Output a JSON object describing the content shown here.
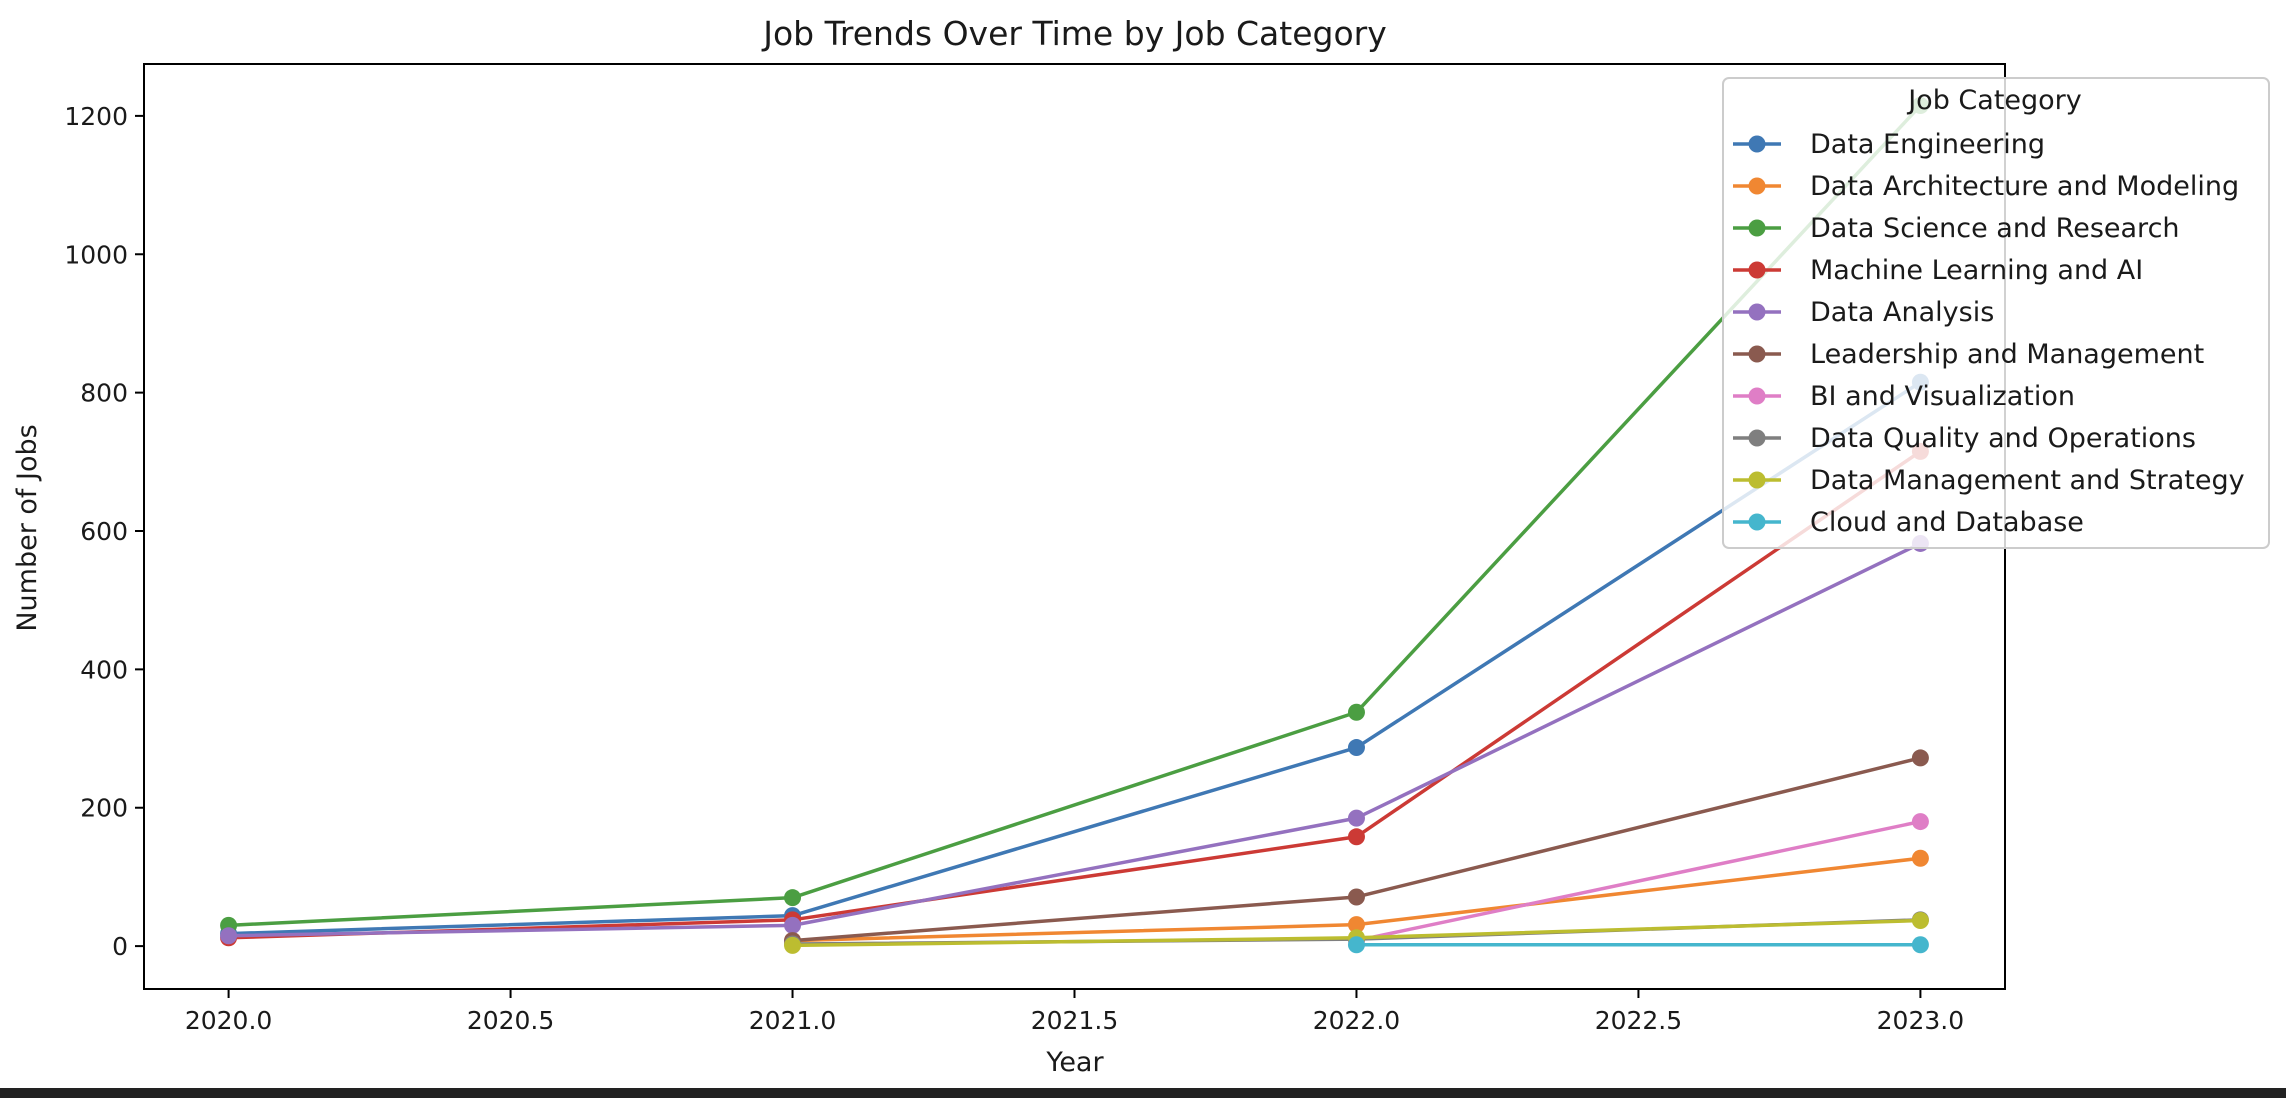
{
  "chart_data": {
    "type": "line",
    "title": "Job Trends Over Time by Job Category",
    "xlabel": "Year",
    "ylabel": "Number of Jobs",
    "xlim": [
      2019.85,
      2023.15
    ],
    "ylim": [
      -62,
      1275
    ],
    "x_ticks": [
      2020.0,
      2020.5,
      2021.0,
      2021.5,
      2022.0,
      2022.5,
      2023.0
    ],
    "x_tick_labels": [
      "2020.0",
      "2020.5",
      "2021.0",
      "2021.5",
      "2022.0",
      "2022.5",
      "2023.0"
    ],
    "y_ticks": [
      0,
      200,
      400,
      600,
      800,
      1000,
      1200
    ],
    "y_tick_labels": [
      "0",
      "200",
      "400",
      "600",
      "800",
      "1000",
      "1200"
    ],
    "grid": false,
    "legend": {
      "title": "Job Category",
      "placement": "top-right"
    },
    "series": [
      {
        "name": "Data Engineering",
        "color": "#3f78b4",
        "points": [
          [
            2020,
            18
          ],
          [
            2021,
            44
          ],
          [
            2022,
            287
          ],
          [
            2023,
            815
          ]
        ]
      },
      {
        "name": "Data Architecture and Modeling",
        "color": "#f08732",
        "points": [
          [
            2021,
            8
          ],
          [
            2022,
            31
          ],
          [
            2023,
            127
          ]
        ]
      },
      {
        "name": "Data Science and Research",
        "color": "#4b9e42",
        "points": [
          [
            2020,
            30
          ],
          [
            2021,
            70
          ],
          [
            2022,
            338
          ],
          [
            2023,
            1215
          ]
        ]
      },
      {
        "name": "Machine Learning and AI",
        "color": "#cc3a35",
        "points": [
          [
            2020,
            12
          ],
          [
            2021,
            38
          ],
          [
            2022,
            158
          ],
          [
            2023,
            715
          ]
        ]
      },
      {
        "name": "Data Analysis",
        "color": "#9471bf",
        "points": [
          [
            2020,
            15
          ],
          [
            2021,
            30
          ],
          [
            2022,
            185
          ],
          [
            2023,
            582
          ]
        ]
      },
      {
        "name": "Leadership and Management",
        "color": "#8a5a4f",
        "points": [
          [
            2021,
            8
          ],
          [
            2022,
            71
          ],
          [
            2023,
            272
          ]
        ]
      },
      {
        "name": "BI and Visualization",
        "color": "#df7ec6",
        "points": [
          [
            2022,
            8
          ],
          [
            2023,
            180
          ]
        ]
      },
      {
        "name": "Data Quality and Operations",
        "color": "#7f7f7f",
        "points": [
          [
            2021,
            3
          ],
          [
            2022,
            10
          ],
          [
            2023,
            38
          ]
        ]
      },
      {
        "name": "Data Management and Strategy",
        "color": "#bcbd30",
        "points": [
          [
            2021,
            1
          ],
          [
            2022,
            12
          ],
          [
            2023,
            37
          ]
        ]
      },
      {
        "name": "Cloud and Database",
        "color": "#45b6cd",
        "points": [
          [
            2022,
            2
          ],
          [
            2023,
            2
          ]
        ]
      }
    ]
  }
}
